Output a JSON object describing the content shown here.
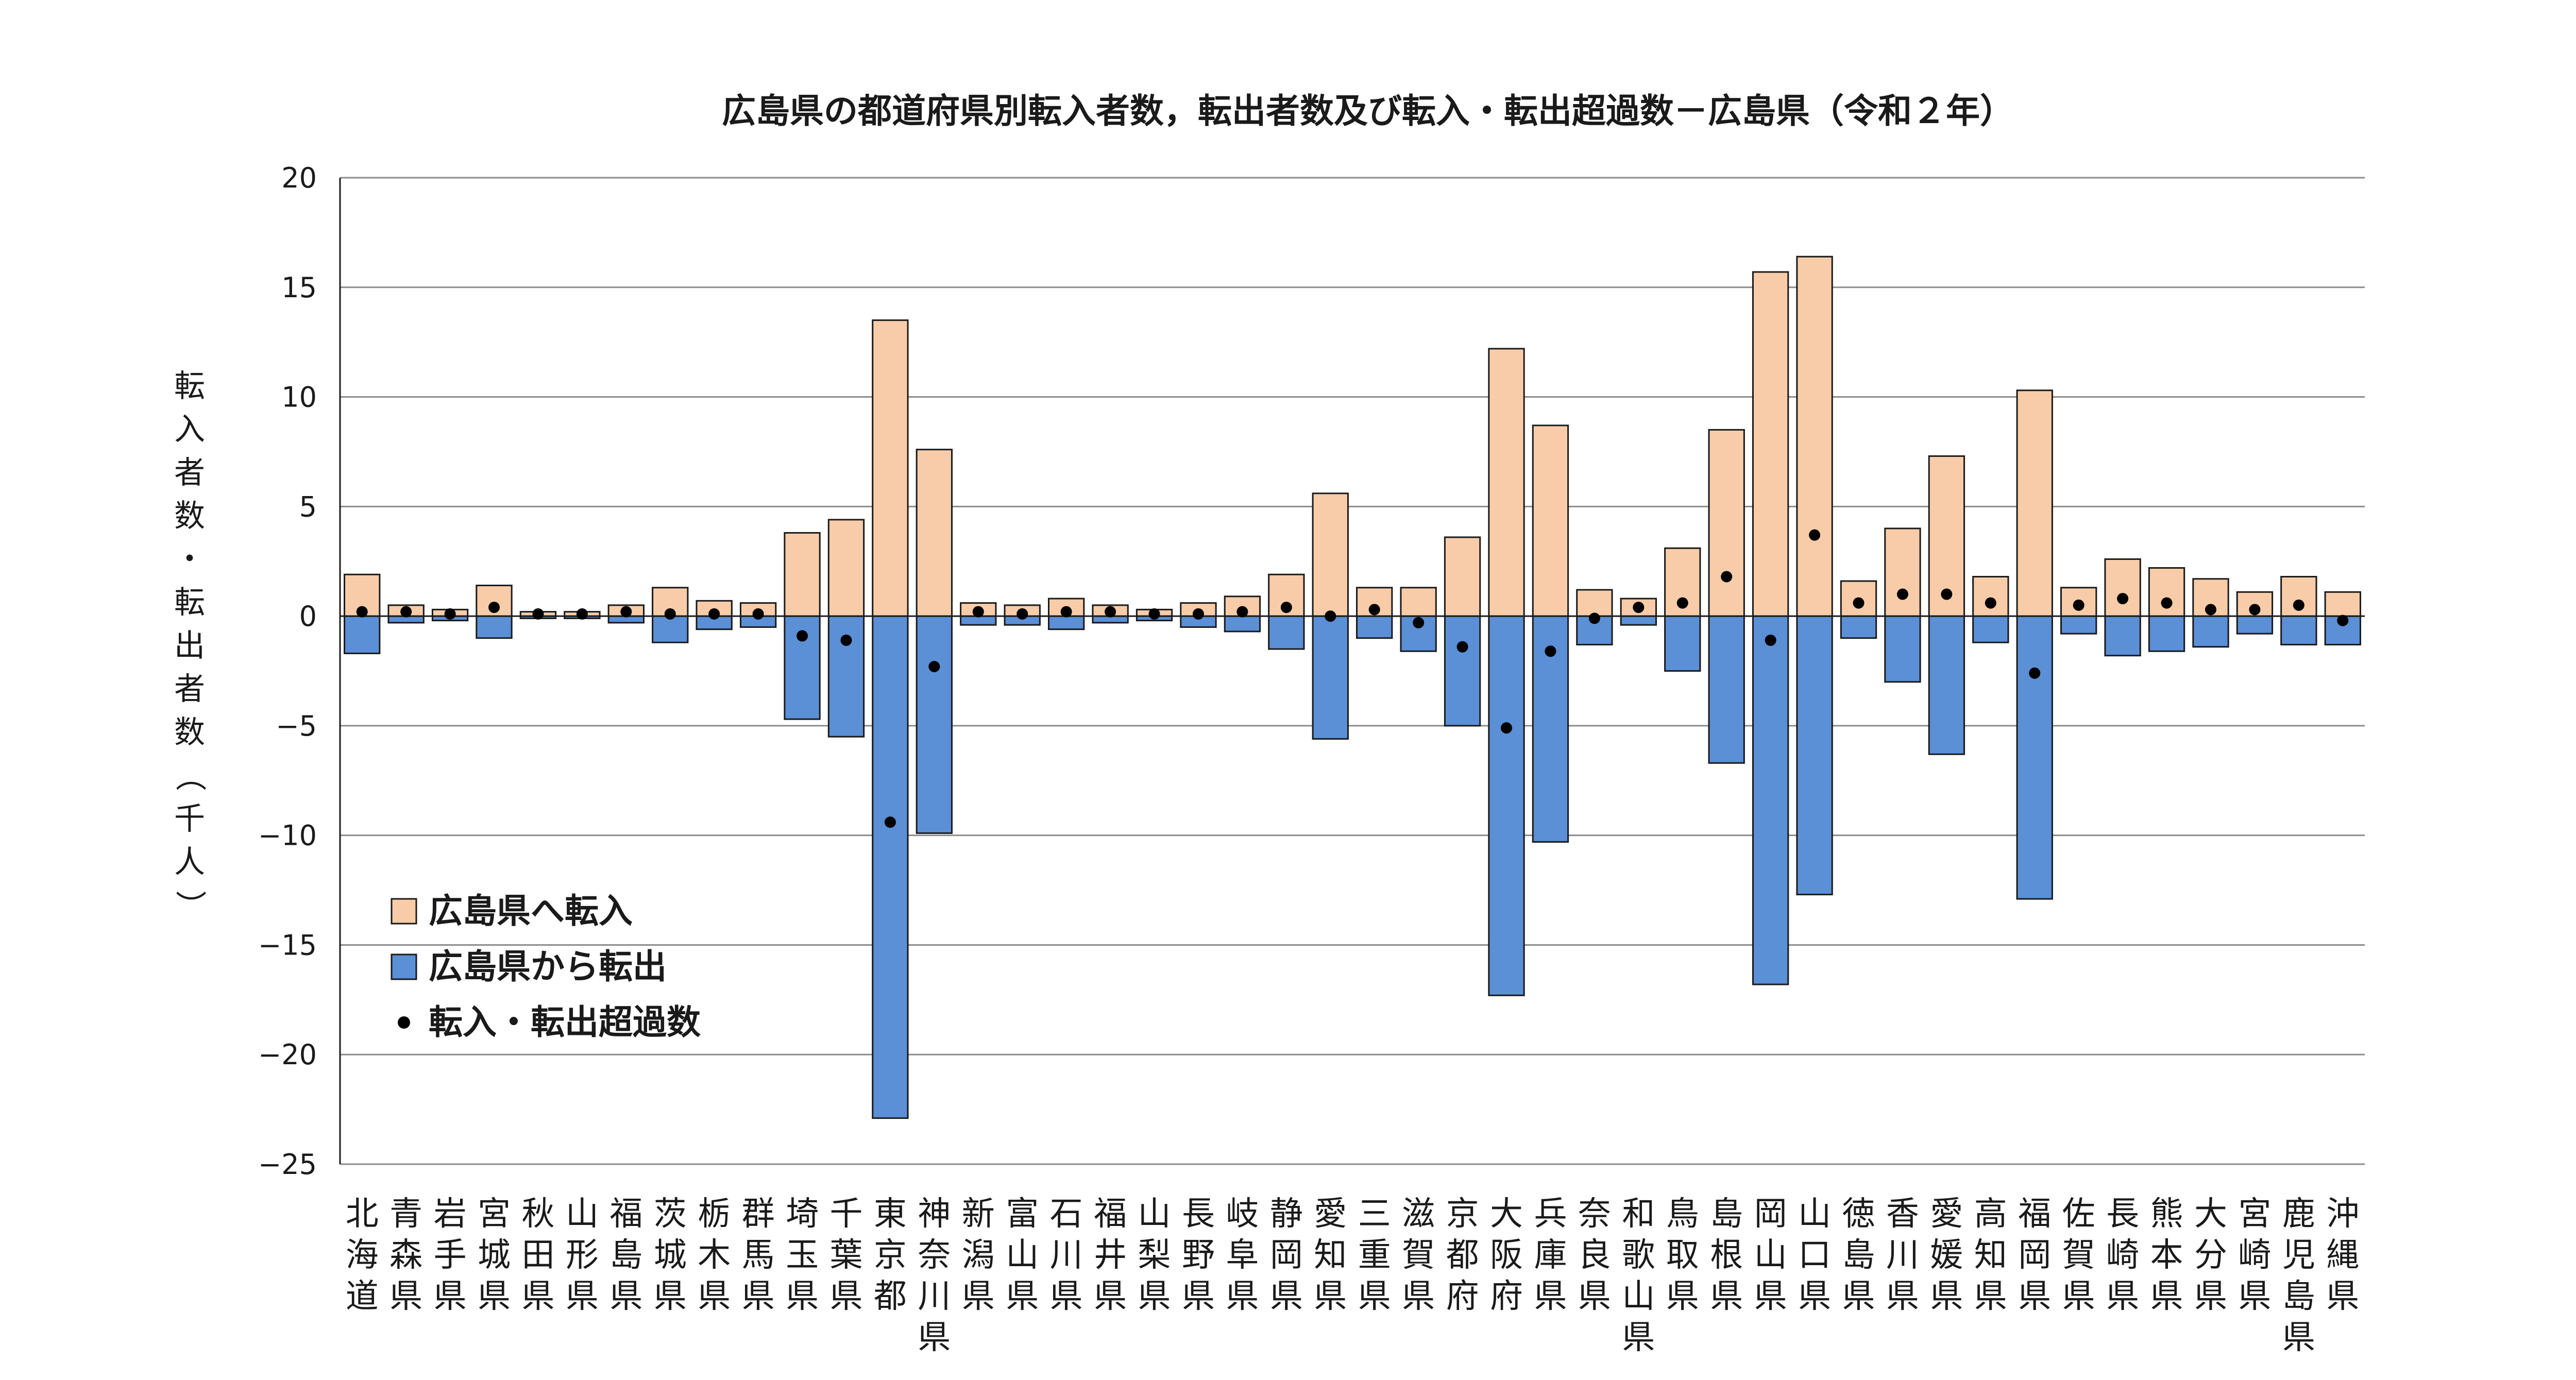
{
  "chart_data": {
    "type": "bar",
    "title": "広島県の都道府県別転入者数，転出者数及び転入・転出超過数－広島県（令和２年）",
    "ylabel": "転入者数・転出者数（千人）",
    "xlabel": "",
    "ylim": [
      -25,
      20
    ],
    "yticks": [
      20,
      15,
      10,
      5,
      0,
      -5,
      -10,
      -15,
      -20,
      -25
    ],
    "ytick_labels": [
      "20",
      "15",
      "10",
      "5",
      "0",
      "−5",
      "−10",
      "−15",
      "−20",
      "−25"
    ],
    "grid": true,
    "legend_position": "bottom-left",
    "categories": [
      "北海道",
      "青森県",
      "岩手県",
      "宮城県",
      "秋田県",
      "山形県",
      "福島県",
      "茨城県",
      "栃木県",
      "群馬県",
      "埼玉県",
      "千葉県",
      "東京都",
      "神奈川県",
      "新潟県",
      "富山県",
      "石川県",
      "福井県",
      "山梨県",
      "長野県",
      "岐阜県",
      "静岡県",
      "愛知県",
      "三重県",
      "滋賀県",
      "京都府",
      "大阪府",
      "兵庫県",
      "奈良県",
      "和歌山県",
      "鳥取県",
      "島根県",
      "岡山県",
      "山口県",
      "徳島県",
      "香川県",
      "愛媛県",
      "高知県",
      "福岡県",
      "佐賀県",
      "長崎県",
      "熊本県",
      "大分県",
      "宮崎県",
      "鹿児島県",
      "沖縄県"
    ],
    "series": [
      {
        "name": "広島県へ転入",
        "kind": "bar",
        "color": "#F8CCA8",
        "values": [
          1.9,
          0.5,
          0.3,
          1.4,
          0.2,
          0.2,
          0.5,
          1.3,
          0.7,
          0.6,
          3.8,
          4.4,
          13.5,
          7.6,
          0.6,
          0.5,
          0.8,
          0.5,
          0.3,
          0.6,
          0.9,
          1.9,
          5.6,
          1.3,
          1.3,
          3.6,
          12.2,
          8.7,
          1.2,
          0.8,
          3.1,
          8.5,
          15.7,
          16.4,
          1.6,
          4.0,
          7.3,
          1.8,
          10.3,
          1.3,
          2.6,
          2.2,
          1.7,
          1.1,
          1.8,
          1.1
        ]
      },
      {
        "name": "広島県から転出",
        "kind": "bar",
        "color": "#5B8FD6",
        "values": [
          -1.7,
          -0.3,
          -0.2,
          -1.0,
          -0.1,
          -0.1,
          -0.3,
          -1.2,
          -0.6,
          -0.5,
          -4.7,
          -5.5,
          -22.9,
          -9.9,
          -0.4,
          -0.4,
          -0.6,
          -0.3,
          -0.2,
          -0.5,
          -0.7,
          -1.5,
          -5.6,
          -1.0,
          -1.6,
          -5.0,
          -17.3,
          -10.3,
          -1.3,
          -0.4,
          -2.5,
          -6.7,
          -16.8,
          -12.7,
          -1.0,
          -3.0,
          -6.3,
          -1.2,
          -12.9,
          -0.8,
          -1.8,
          -1.6,
          -1.4,
          -0.8,
          -1.3,
          -1.3
        ]
      },
      {
        "name": "転入・転出超過数",
        "kind": "dot",
        "color": "#000000",
        "values": [
          0.2,
          0.2,
          0.1,
          0.4,
          0.1,
          0.1,
          0.2,
          0.1,
          0.1,
          0.1,
          -0.9,
          -1.1,
          -9.4,
          -2.3,
          0.2,
          0.1,
          0.2,
          0.2,
          0.1,
          0.1,
          0.2,
          0.4,
          -0.0,
          0.3,
          -0.3,
          -1.4,
          -5.1,
          -1.6,
          -0.1,
          0.4,
          0.6,
          1.8,
          -1.1,
          3.7,
          0.6,
          1.0,
          1.0,
          0.6,
          -2.6,
          0.5,
          0.8,
          0.6,
          0.3,
          0.3,
          0.5,
          -0.2
        ]
      }
    ]
  }
}
